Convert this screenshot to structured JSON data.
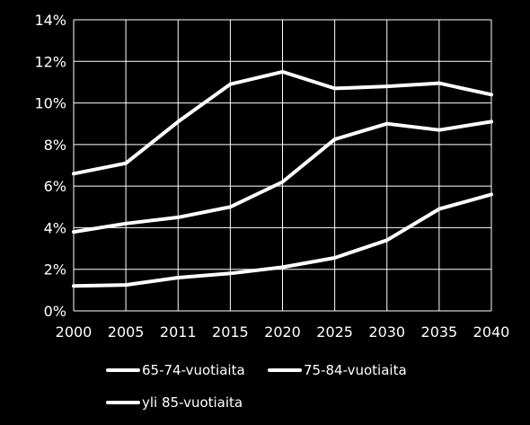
{
  "chart_data": {
    "type": "line",
    "x": [
      "2000",
      "2005",
      "2011",
      "2015",
      "2020",
      "2025",
      "2030",
      "2035",
      "2040"
    ],
    "ylim": [
      0,
      14
    ],
    "yticks": [
      0,
      2,
      4,
      6,
      8,
      10,
      12,
      14
    ],
    "ytick_labels": [
      "0%",
      "2%",
      "4%",
      "6%",
      "8%",
      "10%",
      "12%",
      "14%"
    ],
    "grid": true,
    "legend_position": "bottom",
    "line_color": "#ffffff",
    "background_color": "#000000",
    "grid_color": "#ffffff",
    "series": [
      {
        "name": "65-74-vuotiaita",
        "values": [
          6.6,
          7.1,
          9.1,
          10.9,
          11.5,
          10.7,
          10.8,
          10.95,
          10.4
        ]
      },
      {
        "name": "75-84-vuotiaita",
        "values": [
          3.8,
          4.2,
          4.5,
          5.0,
          6.2,
          8.25,
          9.0,
          8.7,
          9.1
        ]
      },
      {
        "name": "yli 85-vuotiaita",
        "values": [
          1.2,
          1.25,
          1.6,
          1.8,
          2.1,
          2.55,
          3.4,
          4.9,
          5.6
        ]
      }
    ]
  }
}
